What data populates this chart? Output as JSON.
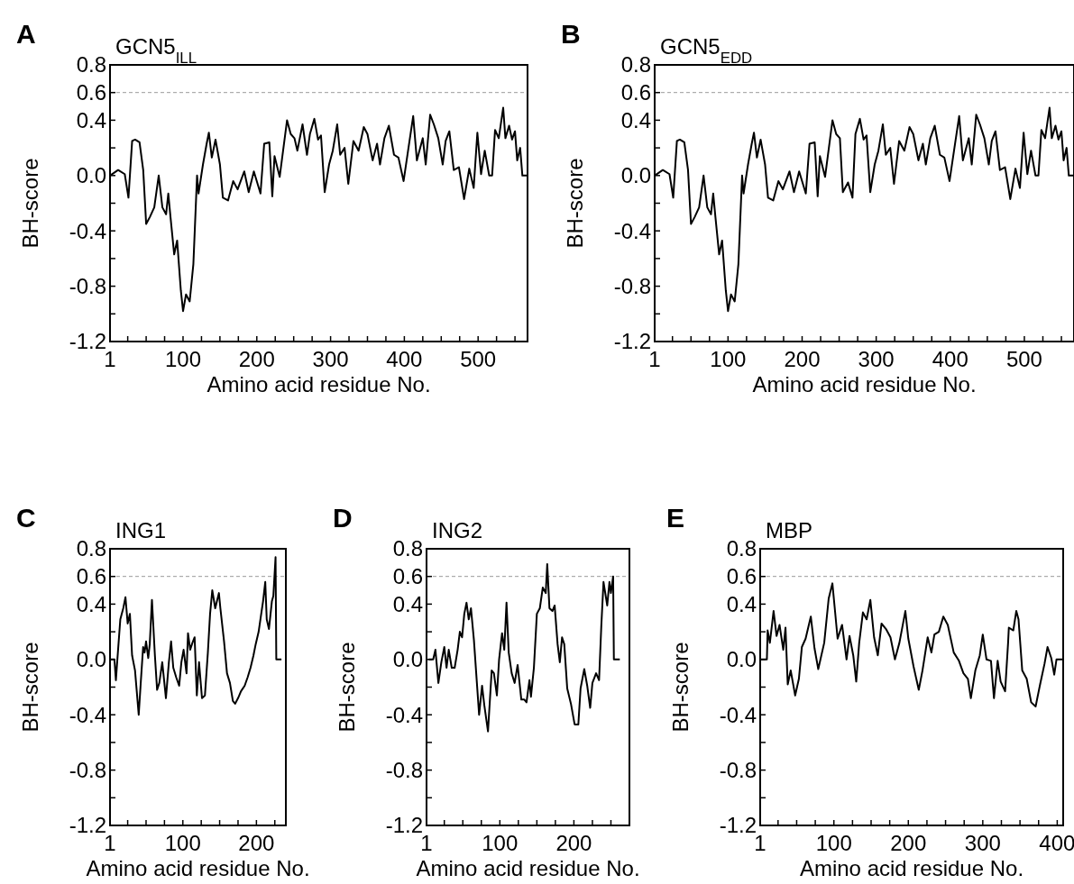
{
  "chart_data": [
    {
      "type": "line",
      "title": "GCN5$_{ILL}$",
      "annotations": [
        "A"
      ],
      "xlabel": "Amino acid residue No.",
      "ylabel": "BH-score",
      "xlim": [
        1,
        567
      ],
      "ylim": [
        -1.2,
        0.8
      ],
      "xticks": [
        1,
        {
          "value": 25,
          "label": null
        },
        {
          "value": 50,
          "label": null
        },
        {
          "value": 75,
          "label": null
        },
        100,
        {
          "value": 125,
          "label": null
        },
        {
          "value": 150,
          "label": null
        },
        {
          "value": 175,
          "label": null
        },
        200,
        {
          "value": 225,
          "label": null
        },
        {
          "value": 250,
          "label": null
        },
        {
          "value": 275,
          "label": null
        },
        300,
        {
          "value": 325,
          "label": null
        },
        {
          "value": 350,
          "label": null
        },
        {
          "value": 375,
          "label": null
        },
        400,
        {
          "value": 425,
          "label": null
        },
        {
          "value": 450,
          "label": null
        },
        {
          "value": 475,
          "label": null
        },
        500,
        {
          "value": 525,
          "label": null
        },
        {
          "value": 550,
          "label": null
        }
      ],
      "yticks": [
        0.8,
        0.6,
        0.4,
        {
          "value": 0.2,
          "label": null
        },
        {
          "value": 0,
          "label": "0.0"
        },
        {
          "value": -0.2,
          "label": null
        },
        -0.4,
        {
          "value": -0.6,
          "label": null
        },
        -0.8,
        {
          "value": -1.0,
          "label": null
        },
        -1.2
      ],
      "ref_lines": [
        {
          "axis": "y",
          "value": 0.6,
          "color": "#999999",
          "line_style": "dashed"
        }
      ],
      "series": [
        {
          "color": "#000000",
          "x": [
            1,
            12,
            21,
            26,
            31,
            35,
            41,
            46,
            50,
            55,
            61,
            67,
            72,
            77,
            80,
            83,
            88,
            92,
            97,
            100,
            104,
            109,
            114,
            119,
            121,
            127,
            132,
            135,
            139,
            144,
            150,
            154,
            161,
            168,
            174,
            183,
            189,
            196,
            205,
            210,
            217,
            221,
            224,
            231,
            241,
            246,
            251,
            255,
            262,
            268,
            272,
            278,
            283,
            287,
            292,
            298,
            303,
            309,
            313,
            319,
            324,
            331,
            338,
            345,
            350,
            357,
            363,
            367,
            373,
            379,
            386,
            392,
            399,
            407,
            412,
            417,
            425,
            429,
            435,
            440,
            446,
            452,
            456,
            461,
            467,
            474,
            481,
            488,
            494,
            499,
            504,
            509,
            515,
            519,
            523,
            528,
            534,
            537,
            542,
            546,
            550,
            553,
            557,
            560,
            567
          ],
          "values": [
            0,
            0.04,
            0.01,
            -0.16,
            0.25,
            0.26,
            0.24,
            0.04,
            -0.35,
            -0.3,
            -0.23,
            0,
            -0.23,
            -0.28,
            -0.13,
            -0.3,
            -0.57,
            -0.47,
            -0.83,
            -0.98,
            -0.86,
            -0.91,
            -0.64,
            0,
            -0.13,
            0.08,
            0.23,
            0.31,
            0.13,
            0.26,
            0.08,
            -0.16,
            -0.18,
            -0.04,
            -0.1,
            0.03,
            -0.12,
            0.03,
            -0.13,
            0.23,
            0.24,
            -0.15,
            0.14,
            -0.01,
            0.4,
            0.3,
            0.27,
            0.18,
            0.37,
            0.15,
            0.3,
            0.41,
            0.26,
            0.29,
            -0.12,
            0.08,
            0.18,
            0.37,
            0.15,
            0.2,
            -0.06,
            0.25,
            0.18,
            0.35,
            0.3,
            0.11,
            0.23,
            0.08,
            0.27,
            0.36,
            0.15,
            0.13,
            -0.04,
            0.25,
            0.43,
            0.11,
            0.27,
            0.08,
            0.44,
            0.37,
            0.27,
            0.08,
            0.25,
            0.32,
            0.04,
            0.06,
            -0.17,
            0.05,
            -0.09,
            0.31,
            0.01,
            0.18,
            0,
            0,
            0.33,
            0.27,
            0.49,
            0.27,
            0.36,
            0.26,
            0.32,
            0.11,
            0.2,
            0,
            0
          ]
        }
      ]
    },
    {
      "type": "line",
      "title": "GCN5$_{EDD}$",
      "annotations": [
        "B"
      ],
      "xlabel": "Amino acid residue No.",
      "ylabel": "BH-score",
      "xlim": [
        1,
        567
      ],
      "ylim": [
        -1.2,
        0.8
      ],
      "xticks": [
        1,
        {
          "value": 25,
          "label": null
        },
        {
          "value": 50,
          "label": null
        },
        {
          "value": 75,
          "label": null
        },
        100,
        {
          "value": 125,
          "label": null
        },
        {
          "value": 150,
          "label": null
        },
        {
          "value": 175,
          "label": null
        },
        200,
        {
          "value": 225,
          "label": null
        },
        {
          "value": 250,
          "label": null
        },
        {
          "value": 275,
          "label": null
        },
        300,
        {
          "value": 325,
          "label": null
        },
        {
          "value": 350,
          "label": null
        },
        {
          "value": 375,
          "label": null
        },
        400,
        {
          "value": 425,
          "label": null
        },
        {
          "value": 450,
          "label": null
        },
        {
          "value": 475,
          "label": null
        },
        500,
        {
          "value": 525,
          "label": null
        },
        {
          "value": 550,
          "label": null
        }
      ],
      "yticks": [
        0.8,
        0.6,
        0.4,
        {
          "value": 0.2,
          "label": null
        },
        {
          "value": 0,
          "label": "0.0"
        },
        {
          "value": -0.2,
          "label": null
        },
        -0.4,
        {
          "value": -0.6,
          "label": null
        },
        -0.8,
        {
          "value": -1.0,
          "label": null
        },
        -1.2
      ],
      "ref_lines": [
        {
          "axis": "y",
          "value": 0.6,
          "color": "#999999",
          "line_style": "dashed"
        }
      ],
      "series": [
        {
          "color": "#000000",
          "x": [
            1,
            12,
            21,
            26,
            31,
            35,
            41,
            46,
            50,
            55,
            61,
            67,
            72,
            77,
            80,
            83,
            88,
            92,
            97,
            100,
            104,
            109,
            114,
            119,
            121,
            127,
            132,
            135,
            139,
            144,
            150,
            154,
            161,
            168,
            174,
            183,
            189,
            196,
            205,
            210,
            217,
            221,
            224,
            231,
            241,
            246,
            251,
            255,
            262,
            268,
            272,
            278,
            283,
            287,
            292,
            298,
            303,
            309,
            313,
            319,
            324,
            331,
            338,
            345,
            350,
            357,
            363,
            367,
            373,
            379,
            386,
            392,
            399,
            407,
            412,
            417,
            425,
            429,
            435,
            440,
            446,
            452,
            456,
            461,
            467,
            474,
            481,
            488,
            494,
            499,
            504,
            509,
            515,
            519,
            523,
            528,
            534,
            537,
            542,
            546,
            550,
            553,
            557,
            560,
            567
          ],
          "values": [
            0,
            0.04,
            0.01,
            -0.16,
            0.25,
            0.26,
            0.24,
            0.04,
            -0.35,
            -0.3,
            -0.23,
            0,
            -0.23,
            -0.28,
            -0.13,
            -0.3,
            -0.57,
            -0.47,
            -0.83,
            -0.98,
            -0.86,
            -0.91,
            -0.64,
            0,
            -0.13,
            0.08,
            0.23,
            0.31,
            0.13,
            0.26,
            0.08,
            -0.16,
            -0.18,
            -0.04,
            -0.1,
            0.03,
            -0.12,
            0.03,
            -0.13,
            0.23,
            0.24,
            -0.15,
            0.14,
            -0.01,
            0.4,
            0.3,
            0.27,
            -0.12,
            -0.05,
            -0.16,
            0.3,
            0.41,
            0.26,
            0.29,
            -0.12,
            0.08,
            0.18,
            0.37,
            0.15,
            0.2,
            -0.06,
            0.25,
            0.18,
            0.35,
            0.3,
            0.11,
            0.23,
            0.08,
            0.27,
            0.36,
            0.15,
            0.13,
            -0.04,
            0.25,
            0.43,
            0.11,
            0.27,
            0.08,
            0.44,
            0.37,
            0.27,
            0.08,
            0.25,
            0.32,
            0.04,
            0.06,
            -0.17,
            0.05,
            -0.09,
            0.31,
            0.01,
            0.18,
            0,
            0,
            0.33,
            0.27,
            0.49,
            0.27,
            0.36,
            0.26,
            0.32,
            0.11,
            0.2,
            0,
            0
          ]
        }
      ]
    },
    {
      "type": "line",
      "title": "ING1",
      "annotations": [
        "C"
      ],
      "xlabel": "Amino acid residue No.",
      "ylabel": "BH-score",
      "xlim": [
        1,
        240
      ],
      "ylim": [
        -1.2,
        0.8
      ],
      "xticks": [
        1,
        {
          "value": 25,
          "label": null
        },
        {
          "value": 50,
          "label": null
        },
        {
          "value": 75,
          "label": null
        },
        100,
        {
          "value": 125,
          "label": null
        },
        {
          "value": 150,
          "label": null
        },
        {
          "value": 175,
          "label": null
        },
        200,
        {
          "value": 225,
          "label": null
        }
      ],
      "yticks": [
        0.8,
        0.6,
        0.4,
        {
          "value": 0.2,
          "label": null
        },
        {
          "value": 0,
          "label": "0.0"
        },
        {
          "value": -0.2,
          "label": null
        },
        -0.4,
        {
          "value": -0.6,
          "label": null
        },
        -0.8,
        {
          "value": -1.0,
          "label": null
        },
        -1.2
      ],
      "ref_lines": [
        {
          "axis": "y",
          "value": 0.6,
          "color": "#999999",
          "line_style": "dashed"
        }
      ],
      "series": [
        {
          "color": "#000000",
          "x": [
            2,
            7,
            9,
            11,
            15,
            19,
            22,
            25,
            28,
            31,
            35,
            40,
            43,
            46,
            48,
            50,
            53,
            55,
            58,
            62,
            65,
            68,
            72,
            77,
            81,
            84,
            87,
            91,
            95,
            98,
            101,
            105,
            107,
            110,
            113,
            116,
            119,
            122,
            126,
            130,
            134,
            137,
            140,
            144,
            149,
            151,
            156,
            160,
            164,
            168,
            171,
            175,
            179,
            184,
            188,
            192,
            196,
            199,
            203,
            206,
            209,
            212,
            214,
            217,
            221,
            223,
            226,
            227,
            234
          ],
          "values": [
            0,
            0,
            -0.15,
            0,
            0.29,
            0.37,
            0.45,
            0.26,
            0.33,
            0.03,
            -0.08,
            -0.4,
            -0.15,
            0.09,
            0.05,
            0.13,
            0.01,
            0.11,
            0.43,
            0.03,
            -0.22,
            -0.17,
            -0.02,
            -0.28,
            -0.02,
            0.13,
            -0.06,
            -0.13,
            -0.19,
            -0.02,
            0.07,
            -0.1,
            0.19,
            0.07,
            0.12,
            0.16,
            -0.26,
            -0.02,
            -0.28,
            -0.26,
            0.05,
            0.33,
            0.5,
            0.37,
            0.48,
            0.37,
            0.13,
            -0.1,
            -0.17,
            -0.3,
            -0.32,
            -0.28,
            -0.23,
            -0.19,
            -0.13,
            -0.06,
            0.03,
            0.11,
            0.2,
            0.31,
            0.42,
            0.56,
            0.29,
            0.22,
            0.42,
            0.46,
            0.74,
            0,
            0
          ]
        }
      ]
    },
    {
      "type": "line",
      "title": "ING2",
      "annotations": [
        "D"
      ],
      "xlabel": "Amino acid residue No.",
      "ylabel": "BH-score",
      "xlim": [
        1,
        275
      ],
      "ylim": [
        -1.2,
        0.8
      ],
      "xticks": [
        1,
        {
          "value": 25,
          "label": null
        },
        {
          "value": 50,
          "label": null
        },
        {
          "value": 75,
          "label": null
        },
        100,
        {
          "value": 125,
          "label": null
        },
        {
          "value": 150,
          "label": null
        },
        {
          "value": 175,
          "label": null
        },
        200,
        {
          "value": 225,
          "label": null
        },
        {
          "value": 250,
          "label": null
        }
      ],
      "yticks": [
        0.8,
        0.6,
        0.4,
        {
          "value": 0.2,
          "label": null
        },
        {
          "value": 0,
          "label": "0.0"
        },
        {
          "value": -0.2,
          "label": null
        },
        -0.4,
        {
          "value": -0.6,
          "label": null
        },
        -0.8,
        {
          "value": -1.0,
          "label": null
        },
        -1.2
      ],
      "ref_lines": [
        {
          "axis": "y",
          "value": 0.6,
          "color": "#999999",
          "line_style": "dashed"
        }
      ],
      "series": [
        {
          "color": "#000000",
          "x": [
            4,
            10,
            13,
            17,
            21,
            25,
            28,
            31,
            35,
            39,
            43,
            46,
            49,
            52,
            55,
            58,
            61,
            65,
            69,
            72,
            76,
            79,
            84,
            89,
            92,
            96,
            99,
            103,
            106,
            109,
            112,
            116,
            120,
            124,
            129,
            133,
            136,
            140,
            142,
            146,
            150,
            154,
            158,
            162,
            164,
            167,
            171,
            174,
            178,
            181,
            184,
            187,
            191,
            196,
            201,
            206,
            209,
            214,
            218,
            222,
            225,
            230,
            234,
            237,
            240,
            245,
            248,
            250,
            253,
            254,
            262
          ],
          "values": [
            0,
            0,
            0.07,
            -0.17,
            -0.02,
            0.09,
            -0.06,
            0.07,
            -0.06,
            -0.06,
            0.07,
            0.2,
            0.16,
            0.33,
            0.41,
            0.29,
            0.37,
            0.14,
            -0.17,
            -0.4,
            -0.19,
            -0.33,
            -0.52,
            -0.08,
            -0.1,
            -0.26,
            0,
            0.19,
            0.07,
            0.41,
            0.05,
            -0.1,
            -0.17,
            -0.04,
            -0.29,
            -0.29,
            -0.31,
            -0.15,
            -0.27,
            -0.06,
            0.33,
            0.37,
            0.52,
            0.48,
            0.69,
            0.37,
            0.35,
            0.39,
            0.11,
            -0.02,
            0.16,
            0.11,
            -0.21,
            -0.32,
            -0.47,
            -0.47,
            -0.21,
            -0.07,
            -0.19,
            -0.35,
            -0.17,
            -0.1,
            -0.15,
            0.24,
            0.56,
            0.39,
            0.56,
            0.48,
            0.6,
            0,
            0
          ]
        }
      ]
    },
    {
      "type": "line",
      "title": "MBP",
      "annotations": [
        "E"
      ],
      "xlabel": "Amino acid residue No.",
      "ylabel": "BH-score",
      "xlim": [
        1,
        408
      ],
      "ylim": [
        -1.2,
        0.8
      ],
      "xticks": [
        1,
        {
          "value": 25,
          "label": null
        },
        {
          "value": 50,
          "label": null
        },
        {
          "value": 75,
          "label": null
        },
        100,
        {
          "value": 125,
          "label": null
        },
        {
          "value": 150,
          "label": null
        },
        {
          "value": 175,
          "label": null
        },
        200,
        {
          "value": 225,
          "label": null
        },
        {
          "value": 250,
          "label": null
        },
        {
          "value": 275,
          "label": null
        },
        300,
        {
          "value": 325,
          "label": null
        },
        {
          "value": 350,
          "label": null
        },
        {
          "value": 375,
          "label": null
        },
        400
      ],
      "yticks": [
        0.8,
        0.6,
        0.4,
        {
          "value": 0.2,
          "label": null
        },
        {
          "value": 0,
          "label": "0.0"
        },
        {
          "value": -0.2,
          "label": null
        },
        -0.4,
        {
          "value": -0.6,
          "label": null
        },
        -0.8,
        {
          "value": -1.0,
          "label": null
        },
        -1.2
      ],
      "ref_lines": [
        {
          "axis": "y",
          "value": 0.6,
          "color": "#999999",
          "line_style": "dashed"
        }
      ],
      "series": [
        {
          "color": "#000000",
          "x": [
            2,
            10,
            11,
            14,
            19,
            23,
            27,
            32,
            35,
            38,
            42,
            48,
            53,
            57,
            62,
            69,
            74,
            79,
            87,
            93,
            98,
            101,
            105,
            111,
            117,
            121,
            126,
            130,
            134,
            139,
            144,
            149,
            154,
            159,
            164,
            170,
            176,
            182,
            188,
            196,
            200,
            207,
            214,
            219,
            226,
            231,
            235,
            241,
            247,
            253,
            261,
            268,
            274,
            280,
            284,
            290,
            296,
            300,
            305,
            311,
            315,
            320,
            324,
            330,
            334,
            335,
            341,
            345,
            348,
            353,
            359,
            365,
            371,
            377,
            383,
            387,
            392,
            396,
            399,
            407
          ],
          "values": [
            0,
            0,
            0.21,
            0.12,
            0.35,
            0.17,
            0.25,
            0.07,
            0.23,
            -0.18,
            -0.08,
            -0.26,
            -0.14,
            0.09,
            0.15,
            0.31,
            0.08,
            -0.07,
            0.12,
            0.44,
            0.55,
            0.38,
            0.15,
            0.25,
            0,
            0.17,
            0.03,
            -0.16,
            0.12,
            0.34,
            0.29,
            0.43,
            0.16,
            0.03,
            0.26,
            0.22,
            0.16,
            0,
            0.12,
            0.35,
            0.15,
            -0.05,
            -0.22,
            -0.08,
            0.16,
            0.05,
            0.18,
            0.2,
            0.31,
            0.25,
            0.05,
            -0.01,
            -0.1,
            -0.14,
            -0.28,
            -0.08,
            0.03,
            0.18,
            0,
            -0.01,
            -0.28,
            -0.01,
            -0.16,
            -0.23,
            0.12,
            0.23,
            0.21,
            0.35,
            0.29,
            -0.08,
            -0.14,
            -0.31,
            -0.34,
            -0.18,
            -0.03,
            0.09,
            0.01,
            -0.11,
            0,
            0
          ]
        }
      ]
    }
  ]
}
